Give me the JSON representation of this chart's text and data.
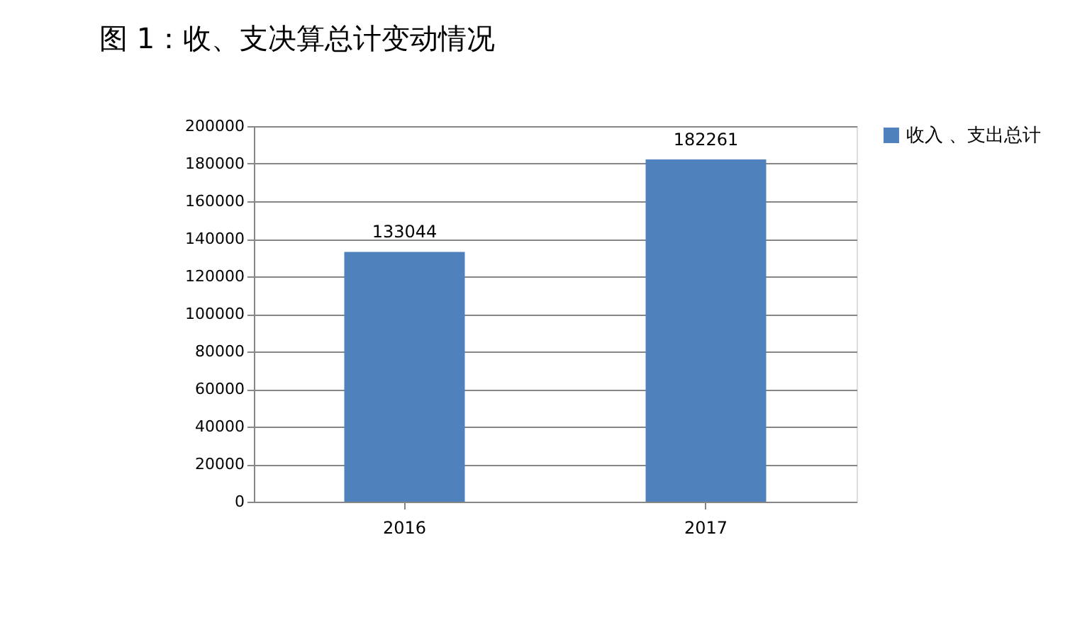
{
  "chart_data": {
    "type": "bar",
    "title": "图 1：收、支决算总计变动情况",
    "categories": [
      "2016",
      "2017"
    ],
    "series": [
      {
        "name": "收入 、支出总计",
        "color": "#4f81bd",
        "values": [
          133044,
          182261
        ]
      }
    ],
    "ylim": [
      0,
      200000
    ],
    "yticks": [
      0,
      20000,
      40000,
      60000,
      80000,
      100000,
      120000,
      140000,
      160000,
      180000,
      200000
    ],
    "grid": "y",
    "legend": "right",
    "data_labels": true
  }
}
